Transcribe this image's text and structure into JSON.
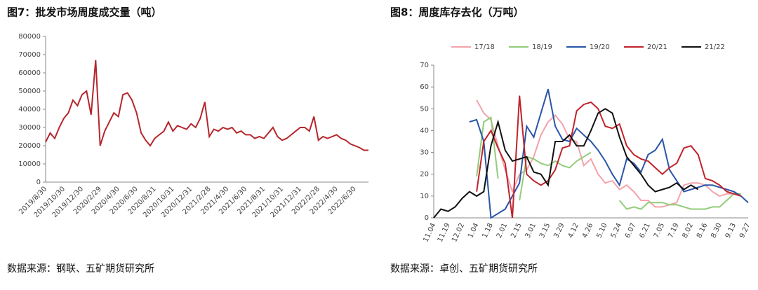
{
  "chart_data": [
    {
      "type": "line",
      "title": "图7：批发市场周度成交量（吨）",
      "source": "数据来源：钢联、五矿期货研究所",
      "categories": [
        "2019/8/30",
        null,
        null,
        null,
        "2019/10/30",
        null,
        null,
        null,
        "2019/12/30",
        null,
        null,
        null,
        "2020/2/29",
        null,
        null,
        null,
        "2020/4/30",
        null,
        null,
        null,
        "2020/6/30",
        null,
        null,
        null,
        "2020/8/31",
        null,
        null,
        null,
        "2020/10/31",
        null,
        null,
        null,
        "2020/12/31",
        null,
        null,
        null,
        "2021/2/28",
        null,
        null,
        null,
        "2021/4/30",
        null,
        null,
        null,
        "2021/6/30",
        null,
        null,
        null,
        "2021/8/31",
        null,
        null,
        null,
        "2021/10/31",
        null,
        null,
        null,
        "2021/12/31",
        null,
        null,
        null,
        "2022/2/28",
        null,
        null,
        null,
        "2022/4/30",
        null,
        null,
        null,
        "2022/6/30",
        null,
        null,
        null
      ],
      "values": [
        22000,
        27000,
        24000,
        30000,
        35000,
        38000,
        45000,
        42000,
        48000,
        50000,
        37000,
        67000,
        20000,
        28000,
        33000,
        38000,
        36000,
        48000,
        49000,
        45000,
        38000,
        27000,
        23000,
        20000,
        24000,
        26000,
        28000,
        33000,
        28000,
        31000,
        30000,
        29000,
        32000,
        30000,
        35000,
        44000,
        25000,
        29000,
        28000,
        30000,
        29000,
        30000,
        27000,
        28000,
        26000,
        26000,
        24000,
        25000,
        24000,
        27000,
        30000,
        25000,
        23000,
        24000,
        26000,
        28000,
        30000,
        30000,
        28000,
        36000,
        23000,
        25000,
        24000,
        25000,
        26000,
        24000,
        23000,
        21000,
        20000,
        19000,
        17500,
        17500
      ],
      "color": "#b5272d",
      "ylim": [
        0,
        80000
      ],
      "yticks": [
        0,
        10000,
        20000,
        30000,
        40000,
        50000,
        60000,
        70000,
        80000
      ],
      "grid": false
    },
    {
      "type": "line",
      "title": "图8：周度库存去化（万吨）",
      "source": "数据来源：卓创、五矿期货研究所",
      "categories": [
        "11.04",
        null,
        "11.19",
        null,
        "12.02",
        null,
        "1.04",
        null,
        "1.18",
        null,
        "2.01",
        null,
        "2.15",
        null,
        "3.01",
        null,
        "3.15",
        null,
        "3.29",
        null,
        "4.12",
        null,
        "4.26",
        null,
        "5.10",
        null,
        "5.24",
        null,
        "6.07",
        null,
        "6.21",
        null,
        "7.05",
        null,
        "7.19",
        null,
        "8.02",
        null,
        "8.16",
        null,
        "8.30",
        null,
        "9.13",
        null,
        "9.27"
      ],
      "series": [
        {
          "name": "17/18",
          "color": "#f2a3ab",
          "values": [
            null,
            null,
            null,
            null,
            null,
            null,
            54,
            48,
            45,
            33,
            22,
            12,
            20,
            22,
            28,
            38,
            44,
            47,
            43,
            36,
            35,
            24,
            27,
            20,
            16,
            17,
            13,
            15,
            12,
            8,
            8,
            5,
            5,
            6,
            7,
            15,
            16,
            16,
            15,
            12,
            10,
            11,
            11,
            null,
            null
          ]
        },
        {
          "name": "18/19",
          "color": "#92cc7a",
          "values": [
            null,
            null,
            null,
            null,
            null,
            null,
            19,
            44,
            46,
            18,
            null,
            null,
            8,
            28,
            27,
            25,
            24,
            26,
            24,
            23,
            26,
            28,
            30,
            null,
            null,
            null,
            8,
            4,
            5,
            4,
            7,
            7,
            7,
            6,
            6,
            5,
            4,
            4,
            4,
            5,
            5,
            8,
            11,
            11,
            null
          ]
        },
        {
          "name": "19/20",
          "color": "#2a55a8",
          "values": [
            null,
            null,
            null,
            null,
            null,
            44,
            45,
            35,
            0,
            2,
            4,
            10,
            16,
            42,
            37,
            48,
            59,
            42,
            36,
            35,
            41,
            38,
            35,
            31,
            26,
            20,
            15,
            27,
            25,
            21,
            29,
            31,
            36,
            22,
            17,
            12,
            13,
            14,
            15,
            15,
            14,
            13,
            12,
            10,
            7
          ]
        },
        {
          "name": "20/21",
          "color": "#c0232b",
          "values": [
            null,
            null,
            null,
            null,
            null,
            null,
            12,
            35,
            40,
            32,
            25,
            0,
            56,
            20,
            17,
            15,
            17,
            22,
            32,
            33,
            49,
            52,
            53,
            50,
            42,
            41,
            43,
            33,
            29,
            27,
            26,
            23,
            20,
            23,
            25,
            32,
            33,
            29,
            18,
            17,
            15,
            12,
            11,
            10,
            null
          ]
        },
        {
          "name": "21/22",
          "color": "#111111",
          "values": [
            0,
            4,
            3,
            5,
            9,
            12,
            10,
            12,
            33,
            44,
            31,
            26,
            27,
            28,
            21,
            20,
            15,
            35,
            35,
            38,
            33,
            33,
            40,
            48,
            50,
            48,
            37,
            28,
            24,
            20,
            15,
            12,
            13,
            14,
            16,
            13,
            15,
            13,
            null,
            null,
            null,
            null,
            null,
            null,
            null
          ]
        }
      ],
      "ylim": [
        0,
        70
      ],
      "yticks": [
        0,
        10,
        20,
        30,
        40,
        50,
        60,
        70
      ],
      "grid": false,
      "legend": "top"
    }
  ]
}
